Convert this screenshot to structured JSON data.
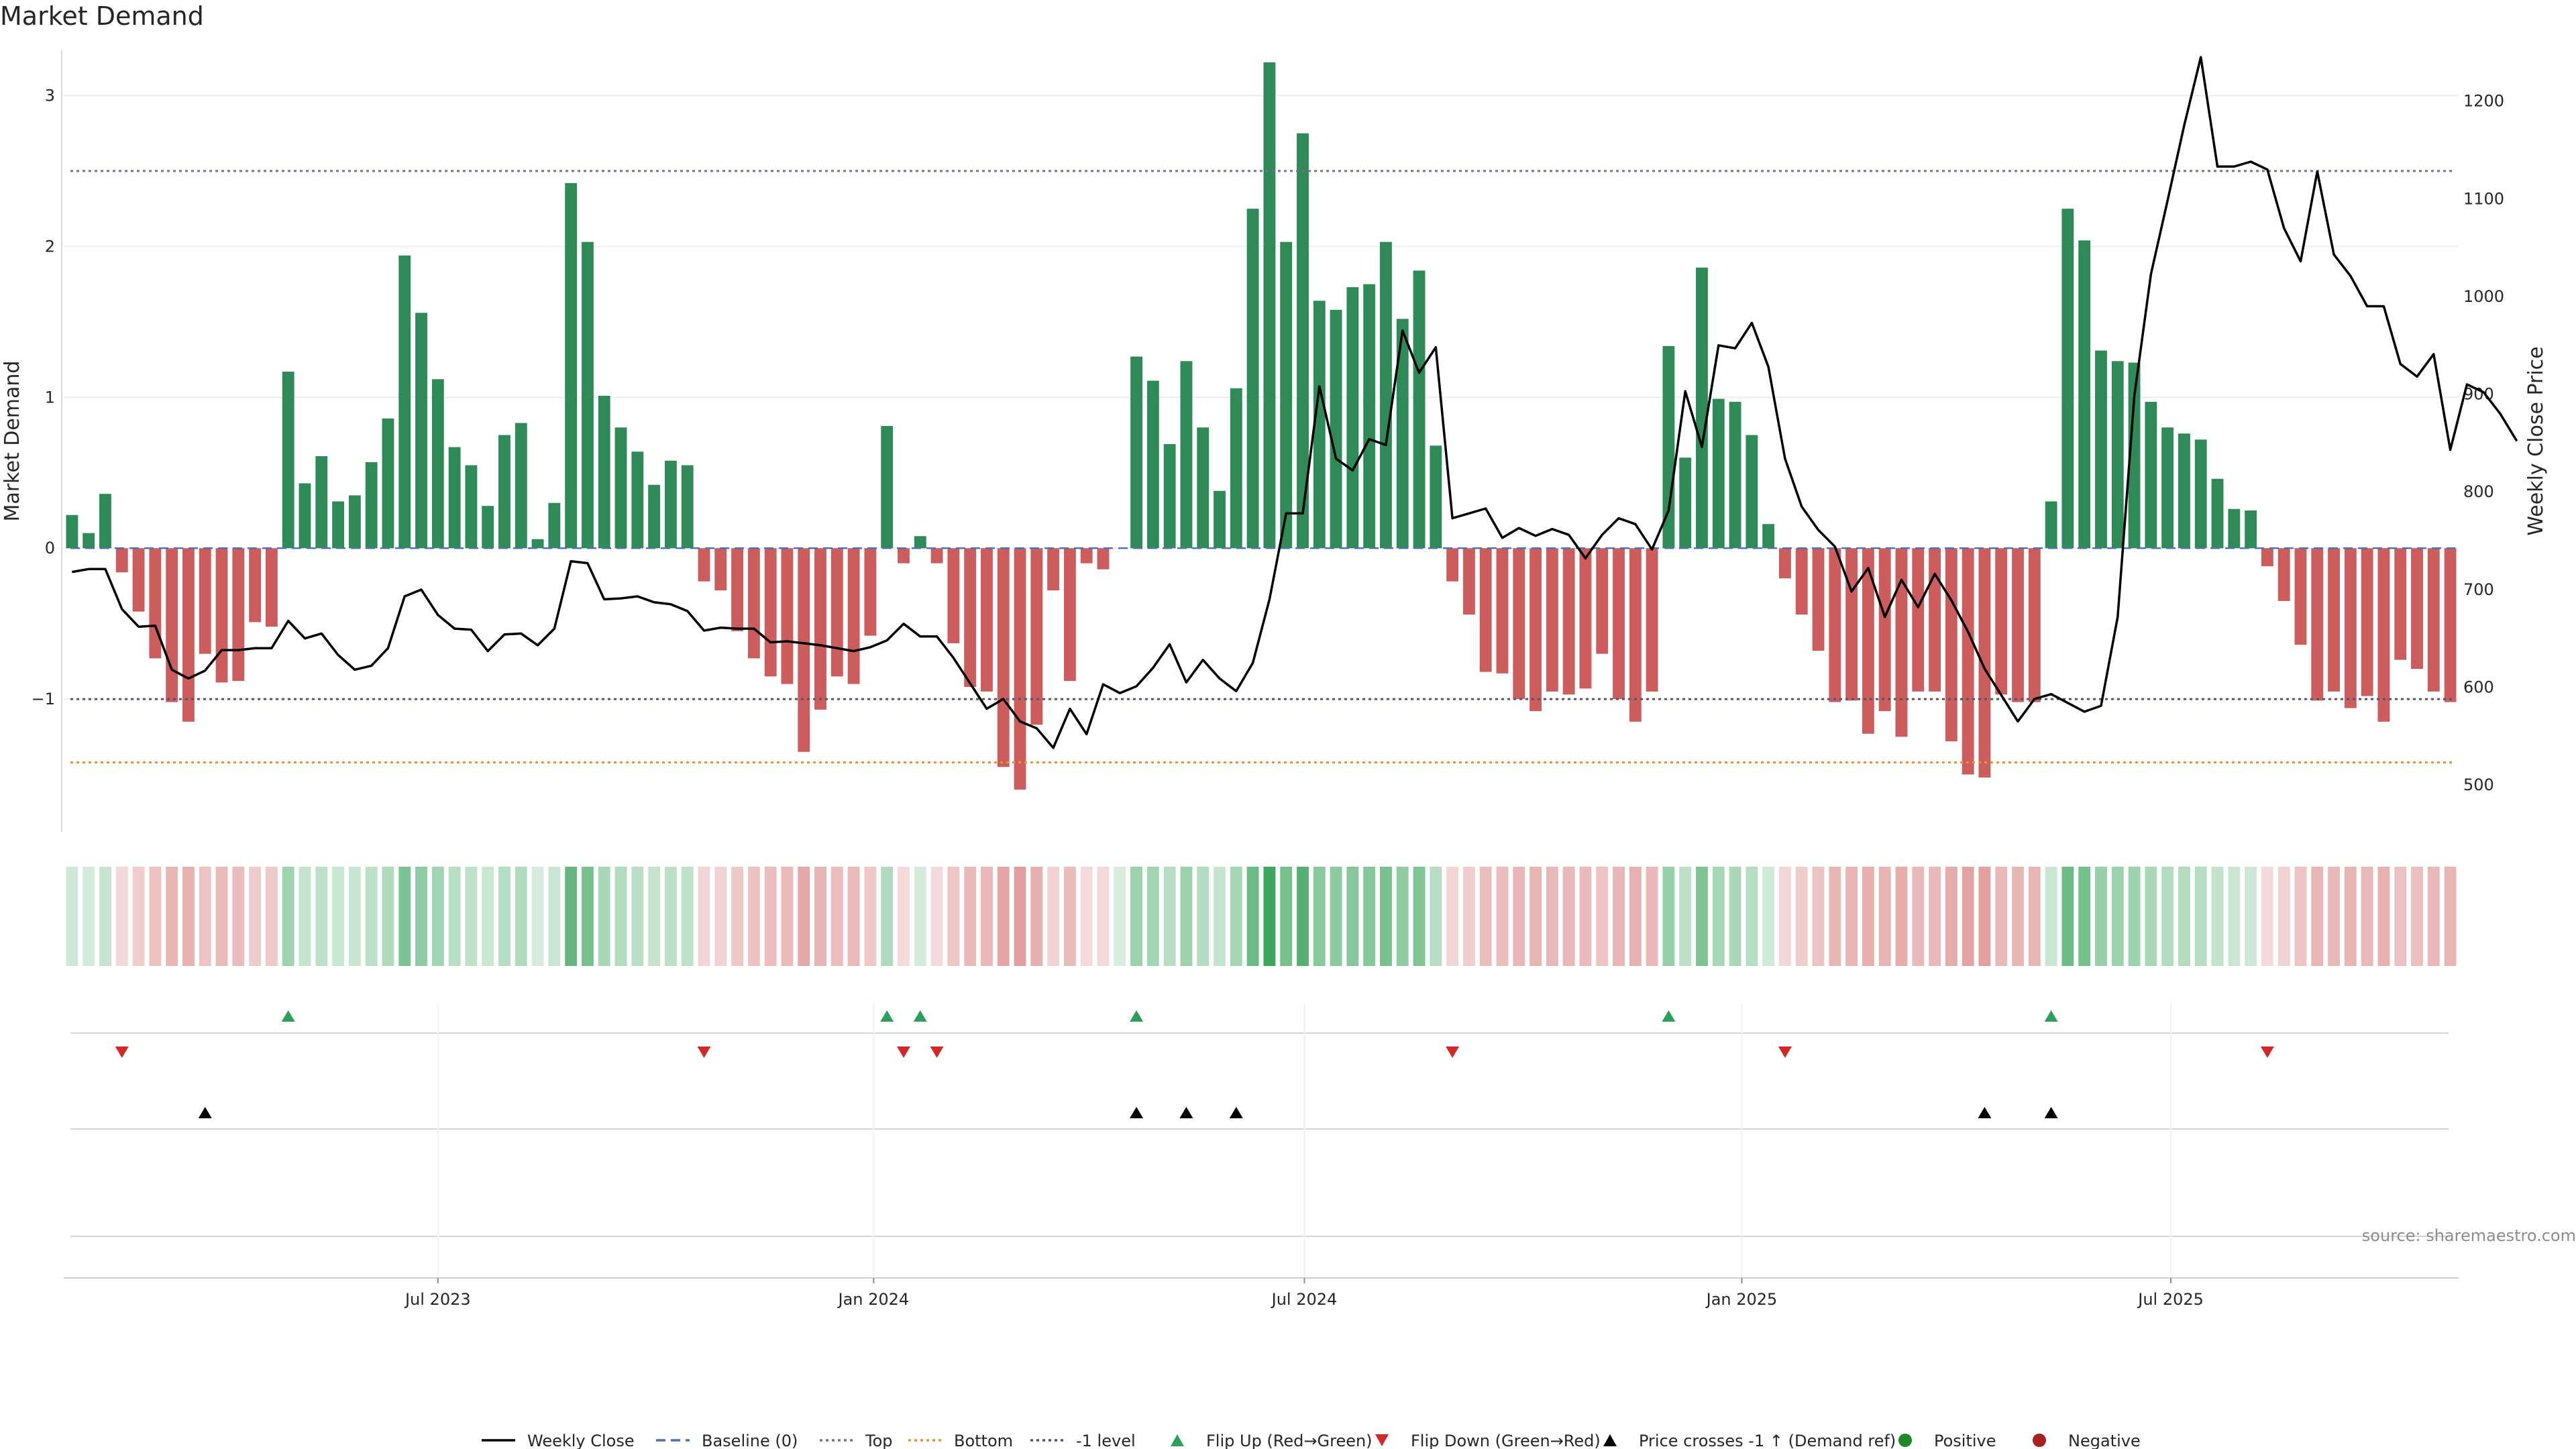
{
  "title": "Market Demand",
  "source_note": "source: sharemaestro.com",
  "chart_data": {
    "type": "bar",
    "title": "Market Demand",
    "ylabel": "Market Demand",
    "y2label": "Weekly Close Price",
    "ylim": [
      -1.88,
      3.3
    ],
    "y2lim": [
      452,
      1252
    ],
    "yticks": [
      -1,
      0,
      1,
      2,
      3
    ],
    "y2ticks": [
      500,
      600,
      700,
      800,
      900,
      1000,
      1100,
      1200
    ],
    "x_ticks": [
      {
        "label": "Jul 2023",
        "week": 22
      },
      {
        "label": "Jan 2024",
        "week": 48.2
      },
      {
        "label": "Jul 2024",
        "week": 74.1
      },
      {
        "label": "Jan 2025",
        "week": 100.4
      },
      {
        "label": "Jul 2025",
        "week": 126.2
      }
    ],
    "reference_lines": {
      "baseline": 0,
      "top": 2.5,
      "bottom": -1.42,
      "minus_one": -1
    },
    "demand": [
      0.22,
      0.1,
      0.36,
      -0.16,
      -0.42,
      -0.73,
      -1.02,
      -1.15,
      -0.7,
      -0.89,
      -0.88,
      -0.49,
      -0.52,
      1.17,
      0.43,
      0.61,
      0.31,
      0.35,
      0.57,
      0.86,
      1.94,
      1.56,
      1.12,
      0.67,
      0.55,
      0.28,
      0.75,
      0.83,
      0.06,
      0.3,
      2.42,
      2.03,
      1.01,
      0.8,
      0.64,
      0.42,
      0.58,
      0.55,
      -0.22,
      -0.28,
      -0.55,
      -0.73,
      -0.85,
      -0.9,
      -1.35,
      -1.07,
      -0.85,
      -0.9,
      -0.58,
      0.81,
      -0.1,
      0.08,
      -0.1,
      -0.63,
      -0.92,
      -0.95,
      -1.45,
      -1.6,
      -1.17,
      -0.28,
      -0.88,
      -0.1,
      -0.14,
      0,
      1.27,
      1.11,
      0.69,
      1.24,
      0.8,
      0.38,
      1.06,
      2.25,
      3.22,
      2.03,
      2.75,
      1.64,
      1.58,
      1.73,
      1.75,
      2.03,
      1.52,
      1.84,
      0.68,
      -0.22,
      -0.44,
      -0.82,
      -0.83,
      -1.0,
      -1.08,
      -0.95,
      -0.97,
      -0.93,
      -0.7,
      -1.0,
      -1.15,
      -0.95,
      1.34,
      0.6,
      1.86,
      0.99,
      0.97,
      0.75,
      0.16,
      -0.2,
      -0.44,
      -0.68,
      -1.02,
      -1.01,
      -1.23,
      -1.08,
      -1.25,
      -0.95,
      -0.95,
      -1.28,
      -1.5,
      -1.52,
      -0.97,
      -1.02,
      -1.02,
      0.31,
      2.25,
      2.04,
      1.31,
      1.24,
      1.23,
      0.97,
      0.8,
      0.76,
      0.72,
      0.46,
      0.26,
      0.25,
      -0.12,
      -0.35,
      -0.64,
      -1.01,
      -0.95,
      -1.06,
      -0.98,
      -1.15,
      -0.74,
      -0.8,
      -0.95,
      -1.02
    ],
    "close": [
      718,
      721,
      721,
      680,
      662,
      663,
      618,
      609,
      617,
      638,
      638,
      640,
      640,
      668,
      650,
      655,
      633,
      618,
      622,
      640,
      693,
      700,
      674,
      660,
      659,
      637,
      654,
      655,
      643,
      660,
      729,
      727,
      690,
      691,
      693,
      687,
      685,
      678,
      658,
      661,
      660,
      660,
      646,
      647,
      645,
      643,
      640,
      637,
      641,
      648,
      665,
      652,
      652,
      630,
      604,
      578,
      588,
      565,
      558,
      538,
      578,
      552,
      603,
      594,
      601,
      620,
      644,
      605,
      628,
      609,
      596,
      625,
      690,
      778,
      778,
      908,
      834,
      822,
      854,
      848,
      965,
      922,
      948,
      773,
      778,
      783,
      753,
      763,
      755,
      762,
      756,
      732,
      756,
      773,
      767,
      741,
      781,
      903,
      846,
      950,
      947,
      973,
      928,
      834,
      785,
      761,
      744,
      698,
      722,
      672,
      710,
      682,
      716,
      689,
      657,
      619,
      592,
      565,
      588,
      593,
      584,
      575,
      581,
      672,
      898,
      1023,
      1098,
      1175,
      1245,
      1133,
      1133,
      1138,
      1130,
      1070,
      1036,
      1128,
      1043,
      1021,
      990,
      990,
      931,
      918,
      941,
      843,
      910,
      902,
      880,
      852
    ]
  },
  "legend": [
    {
      "label": "Weekly Close",
      "kind": "line-solid",
      "color": "#000000"
    },
    {
      "label": "Baseline (0)",
      "kind": "line-dashed",
      "color": "#4c72b0"
    },
    {
      "label": "Top",
      "kind": "line-dotted",
      "color": "#7a6aa8"
    },
    {
      "label": "Bottom",
      "kind": "line-dotted",
      "color": "#e8962c"
    },
    {
      "label": "-1 level",
      "kind": "line-dotted",
      "color": "#55556a"
    },
    {
      "label": "Flip Up (Red→Green)",
      "kind": "triangle-up",
      "color": "#2ca05a"
    },
    {
      "label": "Flip Down (Green→Red)",
      "kind": "triangle-down",
      "color": "#d62728"
    },
    {
      "label": "Price crosses -1 ↑ (Demand ref)",
      "kind": "triangle-up",
      "color": "#000000"
    },
    {
      "label": "Positive",
      "kind": "dot",
      "color": "#1f8a2a"
    },
    {
      "label": "Negative",
      "kind": "dot",
      "color": "#a82020"
    }
  ],
  "colors": {
    "positive_bar": "#2e8b57",
    "negative_bar": "#cd5c5c",
    "flip_up": "#2ca05a",
    "flip_down": "#d62728",
    "cross": "#000000"
  }
}
